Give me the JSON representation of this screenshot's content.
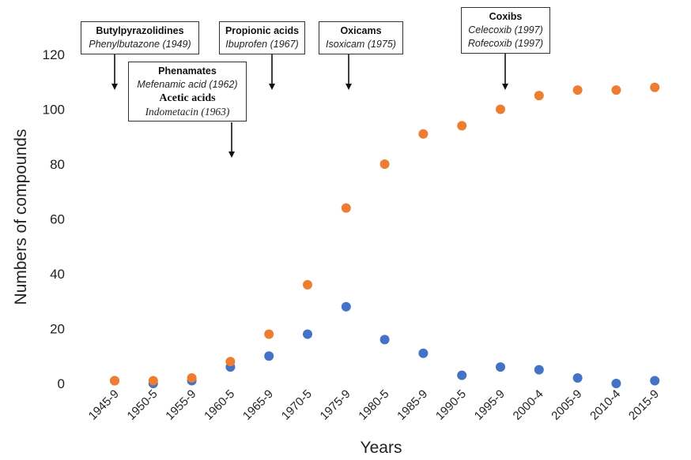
{
  "chart_data": {
    "type": "scatter",
    "categories": [
      "1945-9",
      "1950-5",
      "1955-9",
      "1960-5",
      "1965-9",
      "1970-5",
      "1975-9",
      "1980-5",
      "1985-9",
      "1990-5",
      "1995-9",
      "2000-4",
      "2005-9",
      "2010-4",
      "2015-9"
    ],
    "series": [
      {
        "color": "#4472C4",
        "values": [
          1,
          0,
          1,
          6,
          10,
          18,
          28,
          16,
          11,
          3,
          6,
          5,
          2,
          0,
          1
        ]
      },
      {
        "color": "#ED7D31",
        "values": [
          1,
          1,
          2,
          8,
          18,
          36,
          64,
          80,
          91,
          94,
          100,
          105,
          107,
          107,
          108
        ]
      }
    ],
    "xlabel": "Years",
    "ylabel": "Numbers of compounds",
    "ylim": [
      0,
      120
    ],
    "yticks": [
      0,
      20,
      40,
      60,
      80,
      100,
      120
    ],
    "grid": false
  },
  "annotations": {
    "butylpyrazolidines": {
      "heading": "Butylpyrazolidines",
      "item": "Phenylbutazone (1949)"
    },
    "phenamates": {
      "heading": "Phenamates",
      "item": "Mefenamic acid (1962)",
      "heading2": "Acetic acids",
      "item2": "Indometacin (1963)"
    },
    "propionic": {
      "heading": "Propionic acids",
      "item": "Ibuprofen (1967)"
    },
    "oxicams": {
      "heading": "Oxicams",
      "item": "Isoxicam (1975)"
    },
    "coxibs": {
      "heading": "Coxibs",
      "item": "Celecoxib (1997)",
      "item2": "Rofecoxib (1997)"
    }
  }
}
